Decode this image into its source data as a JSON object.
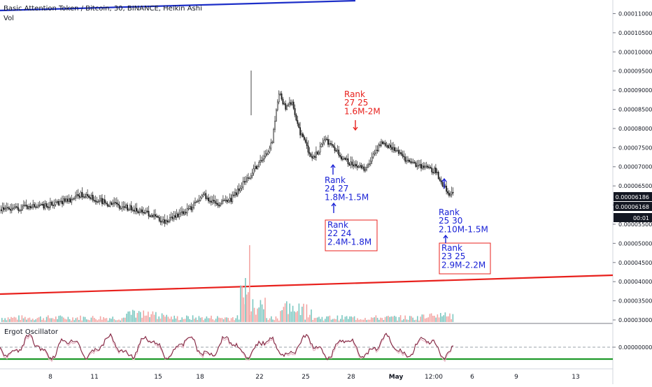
{
  "header": {
    "symbol_line": "Basic Attention Token / Bitcoin, 30, BINANCE, Heikin Ashi",
    "volume_label": "Vol"
  },
  "oscillator": {
    "title": "Ergot Oscillator",
    "zero_label": "0.00000000"
  },
  "colors": {
    "up": "#1a1a1a",
    "trend_blue": "#1d2fc8",
    "trend_red": "#e8201c",
    "annotation_blue": "#1a22d6",
    "annotation_red": "#e8201c",
    "vol_up": "#7cc8c1",
    "vol_down": "#f3a6a4",
    "erg_line": "#7a1f3a",
    "erg_signal": "#e8b6c5",
    "erg_green": "#1f9a2a",
    "price_badge": "#131722"
  },
  "chart_data": {
    "type": "candlestick",
    "title": "Basic Attention Token / Bitcoin, 30, BINANCE, Heikin Ashi",
    "y_axis_ticks": [
      "0.00011000",
      "0.00010500",
      "0.00010000",
      "0.00009500",
      "0.00009000",
      "0.00008500",
      "0.00008000",
      "0.00007500",
      "0.00007000",
      "0.00006500",
      "0.00006000",
      "0.00005500",
      "0.00005000",
      "0.00004500",
      "0.00004000",
      "0.00003500",
      "0.00003000"
    ],
    "ylim": [
      3e-05,
      0.000111
    ],
    "x_axis_ticks": [
      "8",
      "11",
      "15",
      "18",
      "22",
      "25",
      "28",
      "May",
      "12:00",
      "6",
      "9",
      "13"
    ],
    "price_labels": [
      {
        "text": "0.00006186",
        "value": 6.186e-05
      },
      {
        "text": "0.00006168",
        "value": 6.168e-05
      },
      {
        "text": "00:01",
        "value": 5.69e-05
      }
    ],
    "price_path": [
      [
        0,
        5.88e-05
      ],
      [
        3,
        5.97e-05
      ],
      [
        5,
        6.12e-05
      ],
      [
        6,
        6.28e-05
      ],
      [
        8,
        6.03e-05
      ],
      [
        10,
        5.88e-05
      ],
      [
        11,
        5.75e-05
      ],
      [
        12,
        5.56e-05
      ],
      [
        13,
        5.72e-05
      ],
      [
        14,
        5.9e-05
      ],
      [
        15,
        6.25e-05
      ],
      [
        16,
        6e-05
      ],
      [
        17,
        6.15e-05
      ],
      [
        18,
        6.6e-05
      ],
      [
        19,
        7.05e-05
      ],
      [
        20,
        7.6e-05
      ],
      [
        20.5,
        8.95e-05
      ],
      [
        21,
        8.55e-05
      ],
      [
        21.5,
        8.65e-05
      ],
      [
        22,
        7.95e-05
      ],
      [
        23,
        7.2e-05
      ],
      [
        24,
        7.7e-05
      ],
      [
        25,
        7.3e-05
      ],
      [
        26,
        7e-05
      ],
      [
        27,
        6.95e-05
      ],
      [
        28,
        7.65e-05
      ],
      [
        29,
        7.45e-05
      ],
      [
        30,
        7.15e-05
      ],
      [
        31,
        7e-05
      ],
      [
        32,
        6.9e-05
      ],
      [
        33,
        6.3e-05
      ],
      [
        33.8,
        6.19e-05
      ]
    ],
    "trendlines": [
      {
        "name": "",
        "color": "blue",
        "from": [
          0,
          0.0001095
        ],
        "to": [
          16,
          0.0001113
        ]
      },
      {
        "name": "",
        "color": "red",
        "from": [
          0,
          3.65e-05
        ],
        "to": [
          45,
          4.15e-05
        ]
      }
    ],
    "annotations": [
      {
        "lines": [
          "Rank",
          "27 25",
          "1.6M-2M"
        ],
        "color": "red",
        "boxed": false,
        "arrow": "down"
      },
      {
        "lines": [
          "Rank",
          "24 27",
          "1.8M-1.5M"
        ],
        "color": "blue",
        "boxed": false,
        "arrow": "up"
      },
      {
        "lines": [
          "Rank",
          "22 24",
          "2.4M-1.8M"
        ],
        "color": "blue",
        "boxed": true,
        "arrow": "up"
      },
      {
        "lines": [
          "Rank",
          "25 30",
          "2.10M-1.5M"
        ],
        "color": "blue",
        "boxed": false,
        "arrow": "up"
      },
      {
        "lines": [
          "Rank",
          "23 25",
          "2.9M-2.2M"
        ],
        "color": "blue",
        "boxed": true,
        "arrow": "up"
      }
    ]
  }
}
